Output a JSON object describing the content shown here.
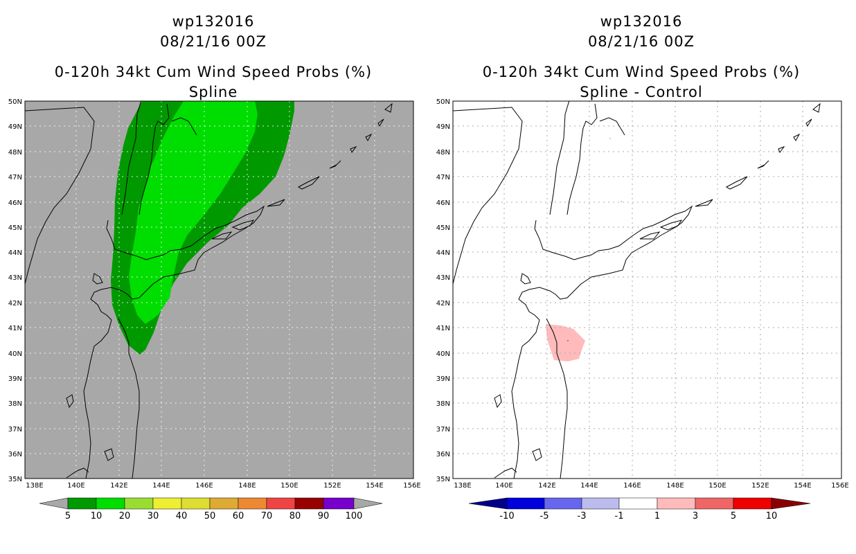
{
  "left_panel": {
    "title_line1": "wp132016",
    "title_line2": "08/21/16 00Z",
    "title_line3": "0-120h 34kt Cum Wind Speed Probs (%)",
    "title_line4": "Spline",
    "background_color": "#a8a8a8",
    "colorbar": {
      "labels": [
        "5",
        "10",
        "20",
        "30",
        "40",
        "50",
        "60",
        "70",
        "80",
        "90",
        "100"
      ],
      "colors": [
        "#009900",
        "#00dd00",
        "#99dd33",
        "#eeee33",
        "#dddd33",
        "#ddaa33",
        "#ee8833",
        "#ee4444",
        "#990000",
        "#7700cc"
      ],
      "end_color": "#a8a8a8"
    }
  },
  "right_panel": {
    "title_line1": "wp132016",
    "title_line2": "08/21/16 00Z",
    "title_line3": "0-120h 34kt Cum Wind Speed Probs (%)",
    "title_line4": "Spline - Control",
    "background_color": "#ffffff",
    "colorbar": {
      "labels": [
        "-10",
        "-5",
        "-3",
        "-1",
        "1",
        "3",
        "5",
        "10"
      ],
      "colors": [
        "#0000dd",
        "#6666ee",
        "#bbbbee",
        "#ffffff",
        "#ffbbbb",
        "#ee6666",
        "#ee0000"
      ],
      "end_colors": [
        "#000088",
        "#880000"
      ]
    }
  },
  "axes": {
    "lat_labels": [
      "35N",
      "36N",
      "37N",
      "38N",
      "39N",
      "40N",
      "41N",
      "42N",
      "43N",
      "44N",
      "45N",
      "46N",
      "47N",
      "48N",
      "49N",
      "50N"
    ],
    "lon_labels": [
      "138E",
      "140E",
      "142E",
      "144E",
      "146E",
      "148E",
      "150E",
      "152E",
      "154E",
      "156E"
    ],
    "lat_range": [
      35,
      50
    ],
    "lon_range": [
      137.5,
      156
    ]
  }
}
